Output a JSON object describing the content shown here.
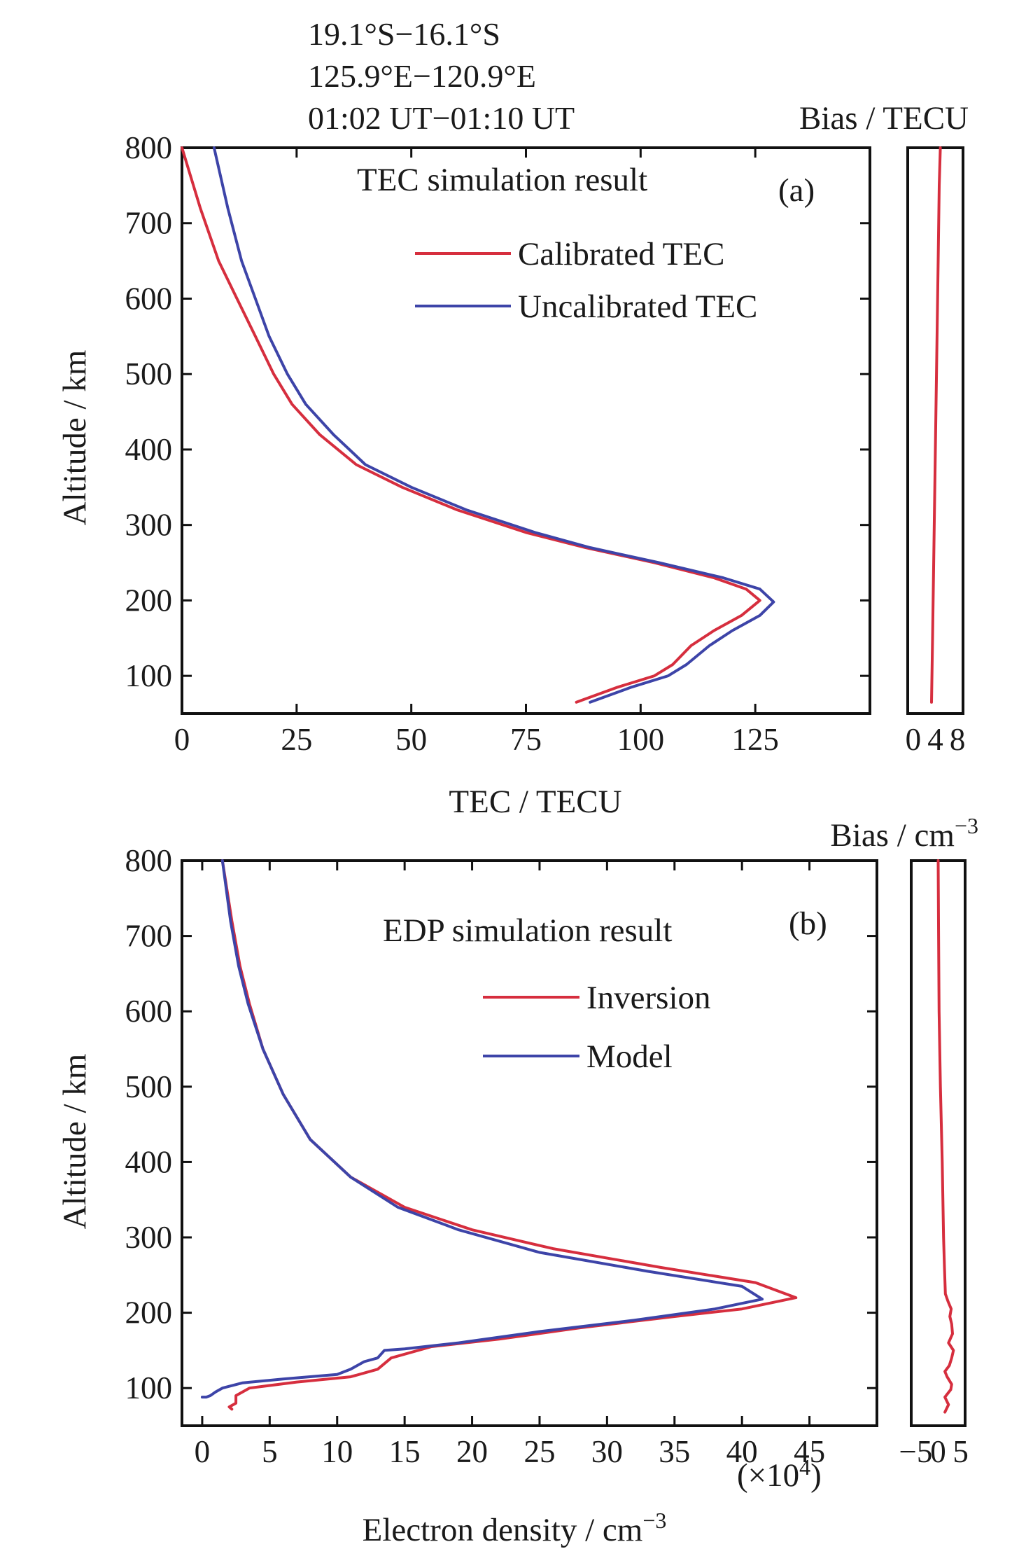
{
  "header": {
    "lines": [
      "19.1°S−16.1°S",
      "125.9°E−120.9°E",
      "01:02 UT−01:10 UT"
    ]
  },
  "colors": {
    "red": "#d62e3e",
    "blue": "#3d44a8"
  },
  "chart_data": [
    {
      "id": "a",
      "type": "line",
      "title": "TEC simulation result",
      "panel_label": "(a)",
      "xlabel": "TEC / TECU",
      "ylabel": "Altitude / km",
      "xlim": [
        0,
        150
      ],
      "ylim": [
        50,
        800
      ],
      "x_ticks": [
        0,
        25,
        50,
        75,
        100,
        125
      ],
      "x_tick_labels": [
        "0",
        "25",
        "50",
        "75",
        "100",
        "125"
      ],
      "y_ticks": [
        100,
        200,
        300,
        400,
        500,
        600,
        700,
        800
      ],
      "y_tick_labels": [
        "100",
        "200",
        "300",
        "400",
        "500",
        "600",
        "700",
        "800"
      ],
      "grid": false,
      "legend_position": "upper-right",
      "series": [
        {
          "name": "Calibrated TEC",
          "color": "#d62e3e",
          "points": [
            [
              86,
              65
            ],
            [
              95,
              85
            ],
            [
              103,
              100
            ],
            [
              107,
              115
            ],
            [
              111,
              140
            ],
            [
              116,
              160
            ],
            [
              122,
              180
            ],
            [
              126,
              200
            ],
            [
              123,
              215
            ],
            [
              116,
              230
            ],
            [
              103,
              250
            ],
            [
              88,
              270
            ],
            [
              75,
              290
            ],
            [
              60,
              320
            ],
            [
              48,
              350
            ],
            [
              38,
              380
            ],
            [
              30,
              420
            ],
            [
              24,
              460
            ],
            [
              20,
              500
            ],
            [
              16,
              550
            ],
            [
              12,
              600
            ],
            [
              8,
              650
            ],
            [
              4,
              720
            ],
            [
              0,
              800
            ]
          ]
        },
        {
          "name": "Uncalibrated TEC",
          "color": "#3d44a8",
          "points": [
            [
              89,
              65
            ],
            [
              98,
              85
            ],
            [
              106,
              100
            ],
            [
              110,
              115
            ],
            [
              115,
              140
            ],
            [
              120,
              160
            ],
            [
              126,
              180
            ],
            [
              129,
              198
            ],
            [
              126,
              215
            ],
            [
              118,
              230
            ],
            [
              104,
              250
            ],
            [
              89,
              270
            ],
            [
              77,
              290
            ],
            [
              62,
              320
            ],
            [
              50,
              350
            ],
            [
              40,
              380
            ],
            [
              33,
              420
            ],
            [
              27,
              460
            ],
            [
              23,
              500
            ],
            [
              19,
              550
            ],
            [
              16,
              600
            ],
            [
              13,
              650
            ],
            [
              10,
              720
            ],
            [
              7,
              800
            ]
          ]
        }
      ]
    },
    {
      "id": "a-bias",
      "type": "line",
      "title": "Bias / TECU",
      "xlim": [
        -1,
        9
      ],
      "ylim": [
        50,
        800
      ],
      "x_ticks": [
        0,
        4,
        8
      ],
      "x_tick_labels": [
        "0",
        "4",
        "8"
      ],
      "series": [
        {
          "name": "",
          "color": "#d62e3e",
          "points": [
            [
              3.3,
              65
            ],
            [
              3.5,
              150
            ],
            [
              3.7,
              250
            ],
            [
              3.9,
              350
            ],
            [
              4.1,
              450
            ],
            [
              4.3,
              550
            ],
            [
              4.5,
              650
            ],
            [
              4.7,
              750
            ],
            [
              4.9,
              800
            ]
          ]
        }
      ]
    },
    {
      "id": "b",
      "type": "line",
      "title": "EDP simulation result",
      "panel_label": "(b)",
      "xlabel": "Electron density / cm",
      "xlabel_sup": "−3",
      "multiplier": "(×10",
      "multiplier_sup": "4",
      "multiplier_close": ")",
      "ylabel": "Altitude / km",
      "xlim": [
        -1.5,
        50
      ],
      "ylim": [
        50,
        800
      ],
      "x_ticks": [
        0,
        5,
        10,
        15,
        20,
        25,
        30,
        35,
        40,
        45
      ],
      "x_tick_labels": [
        "0",
        "5",
        "10",
        "15",
        "20",
        "25",
        "30",
        "35",
        "40",
        "45"
      ],
      "y_ticks": [
        100,
        200,
        300,
        400,
        500,
        600,
        700,
        800
      ],
      "y_tick_labels": [
        "100",
        "200",
        "300",
        "400",
        "500",
        "600",
        "700",
        "800"
      ],
      "grid": false,
      "legend_position": "upper-right",
      "series": [
        {
          "name": "Inversion",
          "color": "#d62e3e",
          "points": [
            [
              2.2,
              72
            ],
            [
              2.0,
              75
            ],
            [
              2.5,
              80
            ],
            [
              2.5,
              90
            ],
            [
              3.5,
              100
            ],
            [
              7,
              108
            ],
            [
              11,
              115
            ],
            [
              13,
              125
            ],
            [
              14,
              140
            ],
            [
              17,
              155
            ],
            [
              22,
              165
            ],
            [
              28,
              180
            ],
            [
              35,
              195
            ],
            [
              40,
              205
            ],
            [
              44,
              220
            ],
            [
              41,
              240
            ],
            [
              34,
              260
            ],
            [
              26,
              285
            ],
            [
              20,
              310
            ],
            [
              15,
              340
            ],
            [
              11,
              380
            ],
            [
              8,
              430
            ],
            [
              6,
              490
            ],
            [
              4.5,
              550
            ],
            [
              3.5,
              610
            ],
            [
              2.8,
              660
            ],
            [
              2.2,
              720
            ],
            [
              1.5,
              800
            ]
          ]
        },
        {
          "name": "Model",
          "color": "#3d44a8",
          "points": [
            [
              0,
              88
            ],
            [
              0.3,
              88
            ],
            [
              0.6,
              90
            ],
            [
              1,
              95
            ],
            [
              1.5,
              100
            ],
            [
              3,
              107
            ],
            [
              6,
              112
            ],
            [
              10,
              118
            ],
            [
              11,
              125
            ],
            [
              12,
              135
            ],
            [
              13,
              140
            ],
            [
              13.5,
              150
            ],
            [
              15,
              152
            ],
            [
              19,
              160
            ],
            [
              25,
              175
            ],
            [
              32,
              190
            ],
            [
              38,
              205
            ],
            [
              41.5,
              218
            ],
            [
              40,
              235
            ],
            [
              33,
              255
            ],
            [
              25,
              280
            ],
            [
              19,
              310
            ],
            [
              14.5,
              340
            ],
            [
              11,
              380
            ],
            [
              8,
              430
            ],
            [
              6,
              490
            ],
            [
              4.5,
              550
            ],
            [
              3.4,
              610
            ],
            [
              2.7,
              660
            ],
            [
              2.1,
              720
            ],
            [
              1.5,
              800
            ]
          ]
        }
      ]
    },
    {
      "id": "b-bias",
      "type": "line",
      "title": "Bias / cm",
      "title_sup": "−3",
      "xlim": [
        -6,
        6
      ],
      "ylim": [
        50,
        800
      ],
      "x_ticks": [
        -5,
        0,
        5
      ],
      "x_tick_labels": [
        "−5",
        "0",
        "5"
      ],
      "series": [
        {
          "name": "",
          "color": "#d62e3e",
          "points": [
            [
              1.5,
              68
            ],
            [
              2.3,
              78
            ],
            [
              1.5,
              88
            ],
            [
              2.8,
              98
            ],
            [
              3.0,
              105
            ],
            [
              2.0,
              115
            ],
            [
              1.5,
              122
            ],
            [
              2.5,
              130
            ],
            [
              3.0,
              140
            ],
            [
              3.4,
              150
            ],
            [
              2.3,
              160
            ],
            [
              3.2,
              172
            ],
            [
              3.0,
              185
            ],
            [
              2.6,
              195
            ],
            [
              2.9,
              205
            ],
            [
              2.2,
              215
            ],
            [
              1.6,
              225
            ],
            [
              1.4,
              260
            ],
            [
              1.2,
              300
            ],
            [
              0.9,
              400
            ],
            [
              0.5,
              500
            ],
            [
              0.2,
              600
            ],
            [
              0.1,
              700
            ],
            [
              0.0,
              800
            ]
          ]
        }
      ]
    }
  ]
}
